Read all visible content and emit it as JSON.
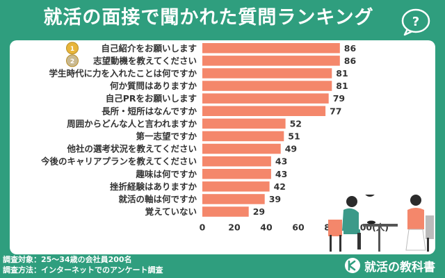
{
  "title": "就活の面接で聞かれた質問ランキング",
  "footer": {
    "line1": "調査対象：25〜34歳の会社員200名",
    "line2": "調査方法：インターネットでのアンケート調査"
  },
  "brand": {
    "name": "就活の教科書"
  },
  "icons": {
    "question_bubble": "question-bubble-icon",
    "medal_gold": "gold-medal-icon",
    "medal_silver": "silver-medal-icon",
    "brand_mark": "brand-logo-icon"
  },
  "colors": {
    "background": "#2f9e7e",
    "bar": "#f4876b",
    "label": "#333333",
    "medal_gold": "#e8b53a",
    "medal_silver": "#c9b990"
  },
  "chart_data": {
    "type": "bar",
    "orientation": "horizontal",
    "categories": [
      "自己紹介をお願いします",
      "志望動機を教えてください",
      "学生時代に力を入れたことは何ですか",
      "何か質問はありますか",
      "自己PRをお願いします",
      "長所・短所はなんですか",
      "周囲からどんな人と言われますか",
      "第一志望ですか",
      "他社の選考状況を教えてください",
      "今後のキャリアプランを教えてください",
      "趣味は何ですか",
      "挫折経験はありますか",
      "就活の軸は何ですか",
      "覚えていない"
    ],
    "values": [
      86,
      86,
      81,
      81,
      79,
      77,
      52,
      51,
      49,
      43,
      43,
      42,
      39,
      29
    ],
    "xlim": [
      0,
      100
    ],
    "ticks": [
      "0",
      "20",
      "40",
      "60",
      "80",
      "100(人)"
    ],
    "grid": false
  }
}
